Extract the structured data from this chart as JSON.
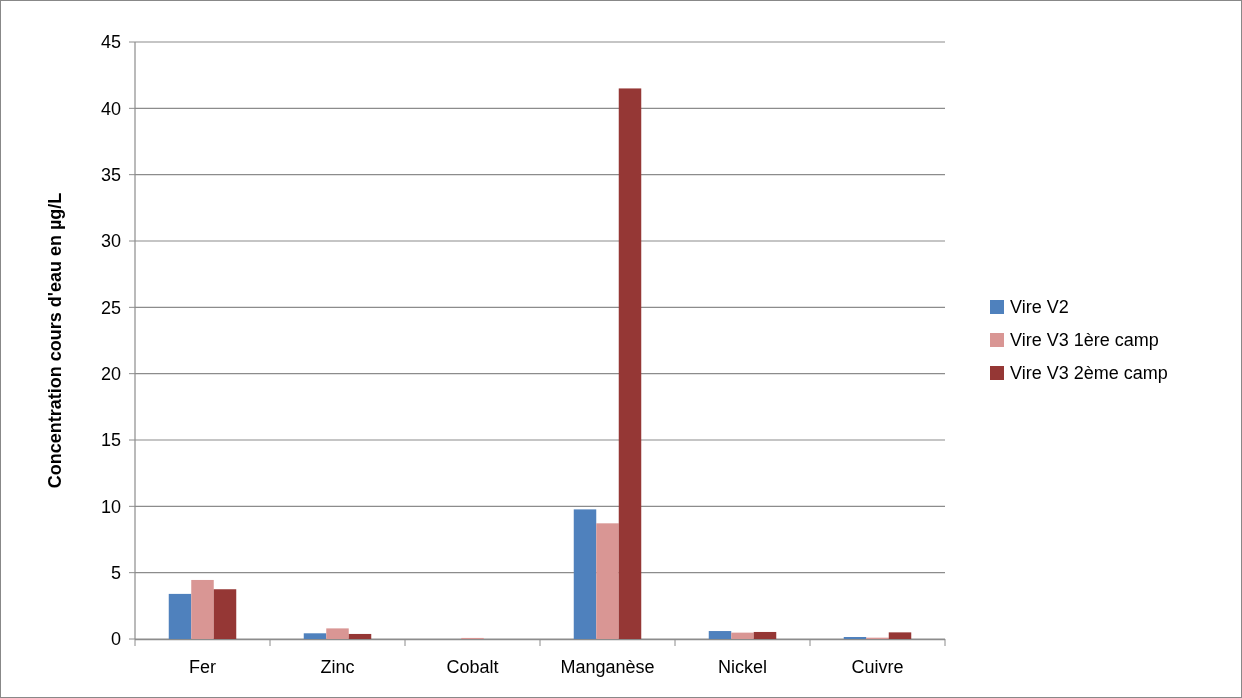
{
  "chart_data": {
    "type": "bar",
    "ylabel": "Concentration cours d'eau en µg/L",
    "categories": [
      "Fer",
      "Zinc",
      "Cobalt",
      "Manganèse",
      "Nickel",
      "Cuivre"
    ],
    "series": [
      {
        "name": "Vire V2",
        "color": "#4f81bd",
        "values": [
          3.4,
          0.43,
          0,
          9.77,
          0.6,
          0.15
        ]
      },
      {
        "name": "Vire V3 1ère camp",
        "color": "#d99694",
        "values": [
          4.45,
          0.8,
          0.08,
          8.72,
          0.48,
          0.1
        ]
      },
      {
        "name": "Vire V3 2ème camp",
        "color": "#953735",
        "values": [
          3.75,
          0.38,
          0,
          41.5,
          0.53,
          0.5
        ]
      }
    ],
    "ylim": [
      0,
      45
    ],
    "yticks": [
      0,
      5,
      10,
      15,
      20,
      25,
      30,
      35,
      40,
      45
    ],
    "grid": "y",
    "legend": "right"
  }
}
